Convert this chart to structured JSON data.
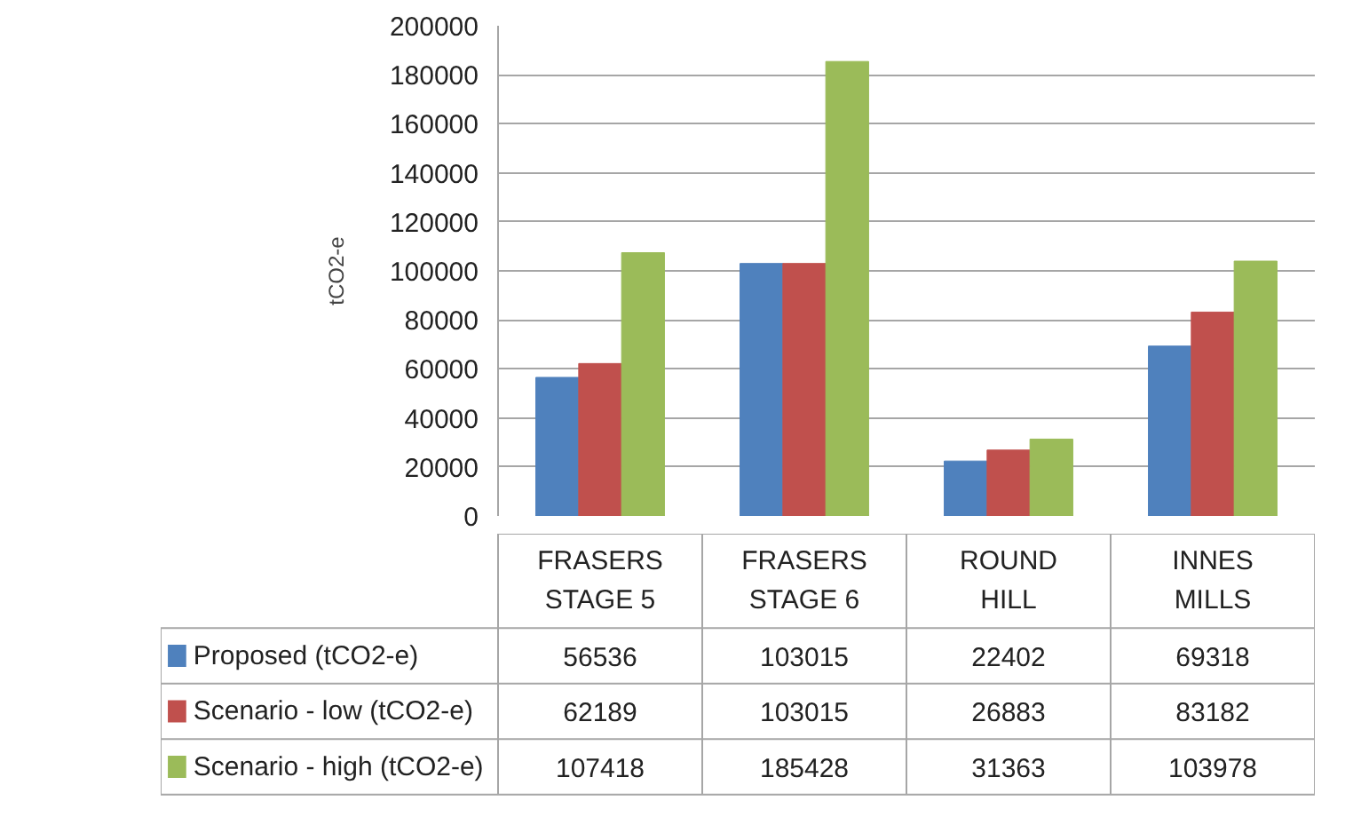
{
  "chart_data": {
    "type": "bar",
    "ylabel": "tCO2-e",
    "categories": [
      "FRASERS STAGE 5",
      "FRASERS STAGE 6",
      "ROUND HILL",
      "INNES MILLS"
    ],
    "series": [
      {
        "name": "Proposed (tCO2-e)",
        "color": "#4f81bd",
        "values": [
          56536,
          103015,
          22402,
          69318
        ]
      },
      {
        "name": "Scenario  - low (tCO2-e)",
        "color": "#c0504d",
        "values": [
          62189,
          103015,
          26883,
          83182
        ]
      },
      {
        "name": "Scenario - high (tCO2-e)",
        "color": "#9bbb59",
        "values": [
          107418,
          185428,
          31363,
          103978
        ]
      }
    ],
    "ylim": [
      0,
      200000
    ],
    "yticks": [
      0,
      20000,
      40000,
      60000,
      80000,
      100000,
      120000,
      140000,
      160000,
      180000,
      200000
    ],
    "grid": "y",
    "legend": "bottom",
    "data_labels": true
  }
}
